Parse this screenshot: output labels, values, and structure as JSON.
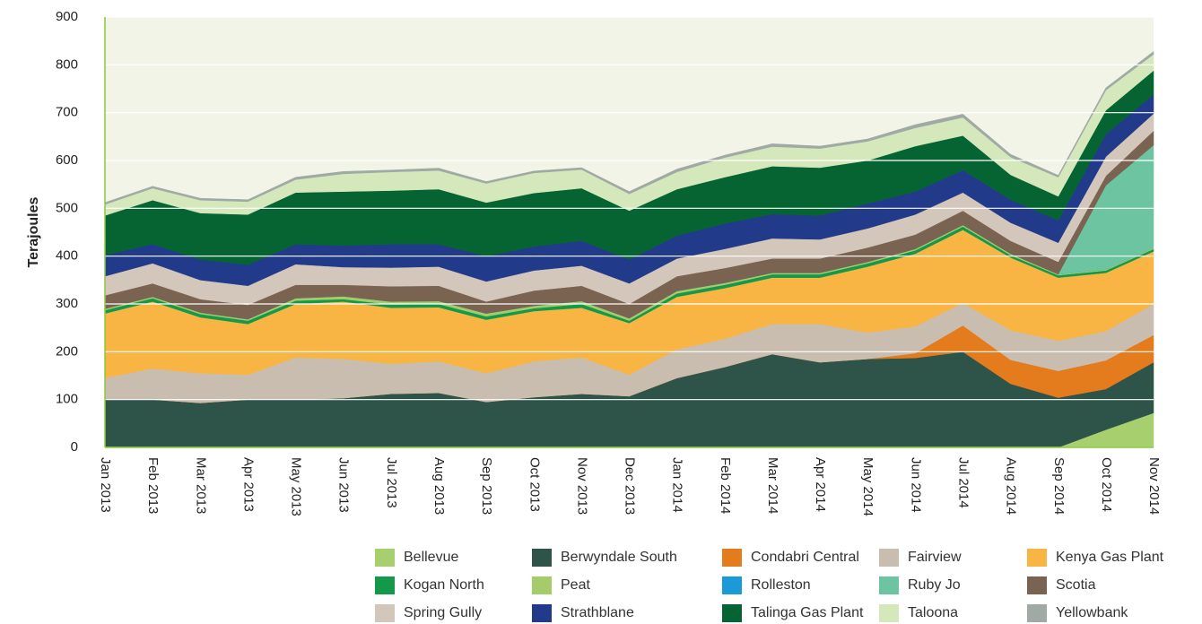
{
  "chart_data": {
    "type": "stacked-area",
    "y_label": "Terajoules",
    "categories": [
      "Jan 2013",
      "Feb 2013",
      "Mar 2013",
      "Apr 2013",
      "May 2013",
      "Jun 2013",
      "Jul 2013",
      "Aug 2013",
      "Sep 2013",
      "Oct 2013",
      "Nov 2013",
      "Dec 2013",
      "Jan 2014",
      "Feb 2014",
      "Mar 2014",
      "Apr 2014",
      "May 2014",
      "Jun 2014",
      "Jul 2014",
      "Aug 2014",
      "Sep 2014",
      "Oct 2014",
      "Nov 2014"
    ],
    "ylim": [
      0,
      900
    ],
    "yticks": [
      0,
      100,
      200,
      300,
      400,
      500,
      600,
      700,
      800,
      900
    ],
    "grid": true,
    "series": [
      {
        "name": "Bellevue",
        "color": "#a8cf6d",
        "values": [
          0,
          0,
          0,
          0,
          0,
          0,
          0,
          0,
          0,
          0,
          0,
          0,
          0,
          0,
          0,
          0,
          0,
          0,
          0,
          0,
          0,
          37,
          72
        ]
      },
      {
        "name": "Berwyndale South",
        "color": "#2e5449",
        "values": [
          100,
          100,
          93,
          100,
          100,
          103,
          112,
          114,
          95,
          105,
          112,
          107,
          145,
          168,
          195,
          178,
          185,
          187,
          200,
          133,
          104,
          85,
          106
        ]
      },
      {
        "name": "Condabri Central",
        "color": "#e47b1c",
        "values": [
          0,
          0,
          0,
          0,
          0,
          0,
          0,
          0,
          0,
          0,
          0,
          0,
          0,
          0,
          0,
          0,
          0,
          10,
          55,
          50,
          56,
          60,
          57
        ]
      },
      {
        "name": "Fairview",
        "color": "#c9bdb0",
        "values": [
          45,
          65,
          62,
          52,
          88,
          82,
          63,
          66,
          60,
          75,
          76,
          45,
          60,
          59,
          63,
          80,
          55,
          56,
          47,
          62,
          63,
          61,
          65
        ]
      },
      {
        "name": "Kenya Gas Plant",
        "color": "#f9b544",
        "values": [
          135,
          140,
          117,
          106,
          112,
          120,
          117,
          113,
          112,
          105,
          104,
          108,
          110,
          106,
          97,
          97,
          138,
          152,
          153,
          152,
          132,
          122,
          110
        ]
      },
      {
        "name": "Kogan North",
        "color": "#14994a",
        "values": [
          7,
          7,
          7,
          7,
          7,
          5,
          7,
          7,
          7,
          6,
          8,
          5,
          7,
          7,
          7,
          7,
          7,
          7,
          7,
          5,
          5,
          5,
          5
        ]
      },
      {
        "name": "Peat",
        "color": "#a5cc6b",
        "values": [
          3,
          3,
          3,
          3,
          5,
          6,
          6,
          6,
          6,
          5,
          6,
          5,
          5,
          4,
          3,
          3,
          3,
          3,
          3,
          3,
          2,
          2,
          2
        ]
      },
      {
        "name": "Rolleston",
        "color": "#1a9bd7",
        "values": [
          0,
          0,
          0,
          0,
          0,
          0,
          0,
          0,
          0,
          0,
          0,
          0,
          0,
          0,
          0,
          0,
          0,
          0,
          0,
          0,
          0,
          0,
          0
        ]
      },
      {
        "name": "Ruby Jo",
        "color": "#6cc4a0",
        "values": [
          0,
          0,
          0,
          0,
          0,
          0,
          0,
          0,
          0,
          0,
          0,
          0,
          0,
          0,
          0,
          0,
          0,
          0,
          0,
          0,
          0,
          176,
          215
        ]
      },
      {
        "name": "Scotia",
        "color": "#7a6350",
        "values": [
          28,
          28,
          28,
          30,
          28,
          24,
          32,
          32,
          25,
          32,
          32,
          30,
          31,
          31,
          30,
          30,
          30,
          30,
          30,
          27,
          26,
          20,
          30
        ]
      },
      {
        "name": "Spring Gully",
        "color": "#d3c6ba",
        "values": [
          40,
          42,
          40,
          40,
          43,
          37,
          39,
          40,
          42,
          42,
          42,
          43,
          37,
          40,
          42,
          40,
          40,
          42,
          38,
          38,
          40,
          40,
          36
        ]
      },
      {
        "name": "Strathblane",
        "color": "#223a8a",
        "values": [
          44,
          40,
          43,
          44,
          42,
          45,
          49,
          47,
          53,
          50,
          52,
          50,
          48,
          53,
          51,
          50,
          52,
          48,
          47,
          48,
          47,
          47,
          40
        ]
      },
      {
        "name": "Talinga Gas Plant",
        "color": "#066432",
        "values": [
          83,
          92,
          97,
          105,
          108,
          113,
          112,
          115,
          112,
          112,
          110,
          102,
          97,
          97,
          100,
          100,
          90,
          95,
          72,
          52,
          50,
          50,
          50
        ]
      },
      {
        "name": "Taloona",
        "color": "#d4e8bc",
        "values": [
          23,
          25,
          27,
          27,
          27,
          37,
          39,
          39,
          40,
          42,
          39,
          35,
          36,
          41,
          41,
          40,
          40,
          38,
          38,
          37,
          40,
          42,
          34
        ]
      },
      {
        "name": "Yellowbank",
        "color": "#a0aaa5",
        "values": [
          4,
          4,
          4,
          4,
          5,
          5,
          4,
          5,
          4,
          4,
          4,
          5,
          6,
          5,
          6,
          5,
          5,
          7,
          7,
          6,
          4,
          5,
          6
        ]
      }
    ]
  }
}
